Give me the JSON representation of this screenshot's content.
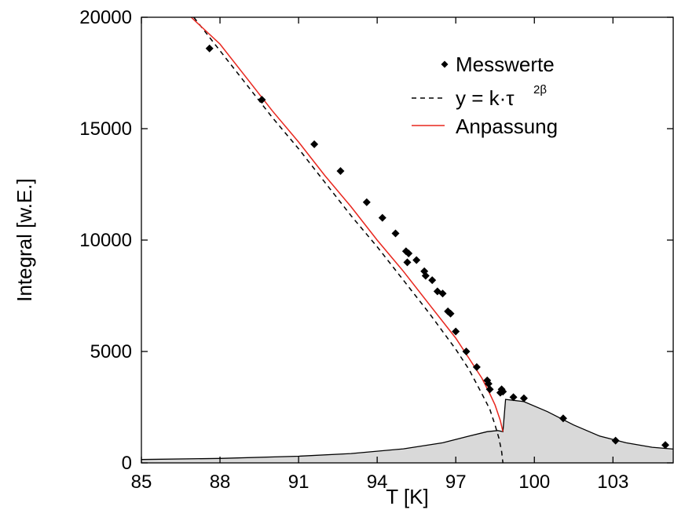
{
  "chart_data": {
    "type": "scatter",
    "xlabel": "T [K]",
    "ylabel": "Integral [w.E.]",
    "xlim": [
      85,
      105.3
    ],
    "ylim": [
      0,
      20000
    ],
    "xticks": [
      "85",
      "88",
      "91",
      "94",
      "97",
      "100",
      "103"
    ],
    "yticks": [
      "0",
      "5000",
      "10000",
      "15000",
      "20000"
    ],
    "grid": false,
    "legend_position": "top-right",
    "legend": {
      "measured": "Messwerte",
      "power_law_prefix": "y = k·τ",
      "power_law_sup": "2β",
      "fit": "Anpassung"
    },
    "colors": {
      "fit": "#e8261d",
      "power_law": "#000000",
      "points": "#000000",
      "background_fill": "#d9d9d9"
    },
    "series": [
      {
        "name": "Messwerte",
        "kind": "points",
        "x": [
          87.6,
          89.6,
          91.6,
          92.6,
          93.6,
          94.2,
          94.7,
          95.1,
          95.15,
          95.2,
          95.5,
          95.8,
          95.85,
          96.1,
          96.3,
          96.5,
          96.7,
          96.8,
          97.0,
          97.4,
          97.8,
          98.2,
          98.25,
          98.3,
          98.7,
          98.75,
          98.8,
          99.2,
          99.6,
          101.1,
          103.1,
          105.0
        ],
        "y": [
          18600,
          16300,
          14300,
          13100,
          11700,
          11000,
          10300,
          9500,
          9000,
          9400,
          9100,
          8600,
          8400,
          8200,
          7700,
          7600,
          6800,
          6700,
          5900,
          5000,
          4300,
          3700,
          3550,
          3300,
          3150,
          3300,
          3200,
          2950,
          2900,
          2000,
          1000,
          800
        ]
      },
      {
        "name": "y = k·τ2β",
        "kind": "dashed",
        "x": [
          87.0,
          88.0,
          89.0,
          90.0,
          91.0,
          92.0,
          93.0,
          94.0,
          95.0,
          96.0,
          97.0,
          97.5,
          98.0,
          98.3,
          98.5,
          98.65,
          98.75,
          98.8
        ],
        "y": [
          20000,
          18500,
          17000,
          15500,
          14100,
          12600,
          11100,
          9700,
          8200,
          6700,
          5100,
          4200,
          3100,
          2400,
          1700,
          1100,
          500,
          0
        ]
      },
      {
        "name": "Anpassung",
        "kind": "line",
        "x": [
          86.9,
          88.0,
          89.0,
          90.0,
          91.0,
          92.0,
          93.0,
          94.0,
          95.0,
          96.0,
          97.0,
          97.5,
          98.0,
          98.3,
          98.5,
          98.7,
          98.8
        ],
        "y": [
          20000,
          18800,
          17300,
          15800,
          14400,
          12900,
          11500,
          10000,
          8600,
          7100,
          5600,
          4700,
          3800,
          3100,
          2600,
          1900,
          1400
        ]
      },
      {
        "name": "",
        "kind": "filled-area",
        "x": [
          85.0,
          88.0,
          91.0,
          93.0,
          95.0,
          96.5,
          97.5,
          98.2,
          98.6,
          98.8,
          98.9,
          99.6,
          100.5,
          101.5,
          102.5,
          103.5,
          104.5,
          105.3
        ],
        "y": [
          150,
          200,
          300,
          420,
          630,
          900,
          1200,
          1400,
          1450,
          1400,
          2850,
          2750,
          2300,
          1700,
          1200,
          900,
          700,
          620
        ]
      }
    ]
  }
}
